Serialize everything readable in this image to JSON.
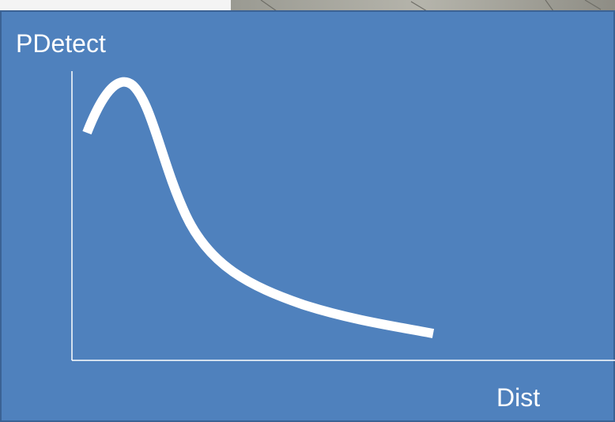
{
  "y_axis_label": "PDetect",
  "x_axis_label": "Dist"
}
